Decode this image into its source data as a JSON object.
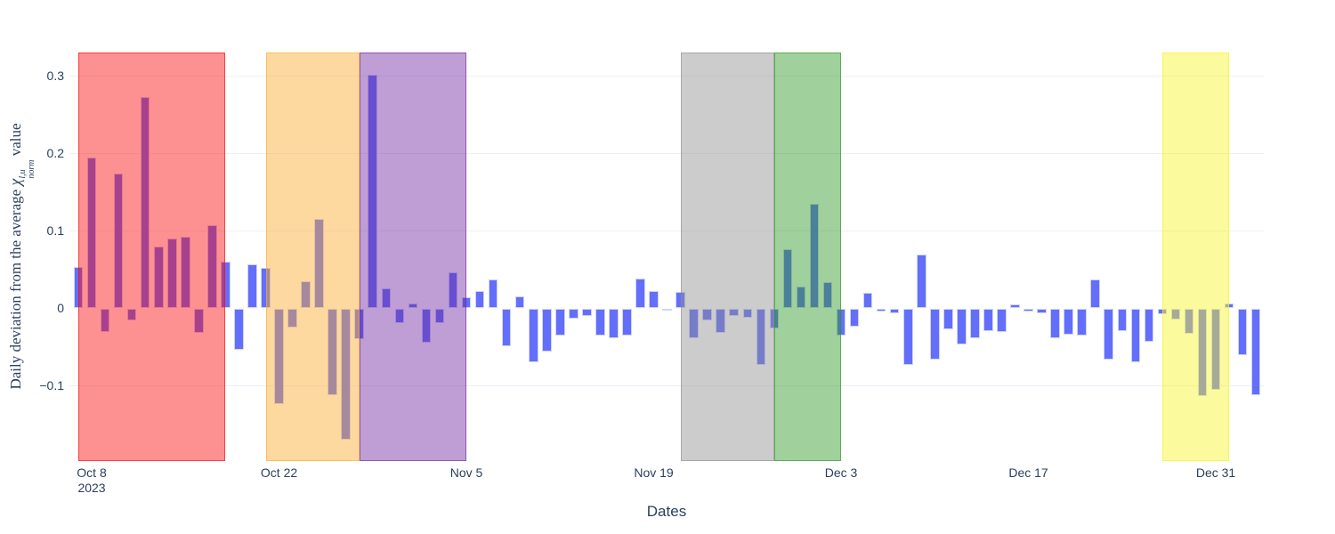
{
  "figure": {
    "background": "#ffffff",
    "text_color": "#2a3f5f",
    "grid_color": "#ebf0f8",
    "bar_color": "#636EFA",
    "bar_border_color": "rgba(225,230,250,0.85)"
  },
  "xaxis_title": "Dates",
  "ytitle_parts": {
    "prefix": "Daily deviation from the average ",
    "chi": "χ",
    "sup": "l,u",
    "sub": "norm",
    "suffix": " value"
  },
  "chart_data": {
    "type": "bar",
    "title": "",
    "xlabel": "Dates",
    "ylabel": "Daily deviation from the average χ_norm^{l,u} value",
    "ylim": [
      -0.197,
      0.331
    ],
    "grid": true,
    "legend": "none",
    "bar_color": "#636EFA",
    "x": [
      "2023-10-07",
      "2023-10-08",
      "2023-10-09",
      "2023-10-10",
      "2023-10-11",
      "2023-10-12",
      "2023-10-13",
      "2023-10-14",
      "2023-10-15",
      "2023-10-16",
      "2023-10-17",
      "2023-10-18",
      "2023-10-19",
      "2023-10-20",
      "2023-10-21",
      "2023-10-22",
      "2023-10-23",
      "2023-10-24",
      "2023-10-25",
      "2023-10-26",
      "2023-10-27",
      "2023-10-28",
      "2023-10-29",
      "2023-10-30",
      "2023-10-31",
      "2023-11-01",
      "2023-11-02",
      "2023-11-03",
      "2023-11-04",
      "2023-11-05",
      "2023-11-06",
      "2023-11-07",
      "2023-11-08",
      "2023-11-09",
      "2023-11-10",
      "2023-11-11",
      "2023-11-12",
      "2023-11-13",
      "2023-11-14",
      "2023-11-15",
      "2023-11-16",
      "2023-11-17",
      "2023-11-18",
      "2023-11-19",
      "2023-11-20",
      "2023-11-21",
      "2023-11-22",
      "2023-11-23",
      "2023-11-24",
      "2023-11-25",
      "2023-11-26",
      "2023-11-27",
      "2023-11-28",
      "2023-11-29",
      "2023-11-30",
      "2023-12-01",
      "2023-12-02",
      "2023-12-03",
      "2023-12-04",
      "2023-12-05",
      "2023-12-06",
      "2023-12-07",
      "2023-12-08",
      "2023-12-09",
      "2023-12-10",
      "2023-12-11",
      "2023-12-12",
      "2023-12-13",
      "2023-12-14",
      "2023-12-15",
      "2023-12-16",
      "2023-12-17",
      "2023-12-18",
      "2023-12-19",
      "2023-12-20",
      "2023-12-21",
      "2023-12-22",
      "2023-12-23",
      "2023-12-24",
      "2023-12-25",
      "2023-12-26",
      "2023-12-27",
      "2023-12-28",
      "2023-12-29",
      "2023-12-30",
      "2023-12-31",
      "2024-01-01",
      "2024-01-02",
      "2024-01-03"
    ],
    "values": [
      0.053,
      0.195,
      -0.031,
      0.174,
      -0.016,
      0.273,
      0.08,
      0.09,
      0.093,
      -0.032,
      0.108,
      0.06,
      -0.053,
      0.057,
      0.052,
      -0.123,
      -0.025,
      0.035,
      0.115,
      -0.112,
      -0.17,
      -0.04,
      0.302,
      0.026,
      -0.019,
      0.006,
      -0.044,
      -0.019,
      0.046,
      0.014,
      0.022,
      0.037,
      -0.049,
      0.015,
      -0.069,
      -0.056,
      -0.035,
      -0.013,
      -0.01,
      -0.035,
      -0.039,
      -0.035,
      0.039,
      0.022,
      -0.002,
      0.021,
      -0.039,
      -0.016,
      -0.032,
      -0.01,
      -0.012,
      -0.073,
      -0.026,
      0.076,
      0.028,
      0.135,
      0.034,
      -0.035,
      -0.023,
      0.02,
      -0.004,
      -0.006,
      -0.073,
      0.069,
      -0.066,
      -0.027,
      -0.046,
      -0.038,
      -0.029,
      -0.03,
      0.005,
      -0.004,
      -0.006,
      -0.039,
      -0.034,
      -0.035,
      0.037,
      -0.066,
      -0.029,
      -0.069,
      -0.043,
      -0.008,
      -0.014,
      -0.033,
      -0.113,
      -0.105,
      0.006,
      -0.06,
      -0.112
    ],
    "yticks": [
      {
        "label": "0.3",
        "value": 0.3
      },
      {
        "label": "0.2",
        "value": 0.2
      },
      {
        "label": "0.1",
        "value": 0.1
      },
      {
        "label": "0",
        "value": 0
      },
      {
        "label": "−0.1",
        "value": -0.1
      }
    ],
    "xticks": [
      {
        "date": "2023-10-08",
        "label": "Oct 8",
        "sublabel": "2023"
      },
      {
        "date": "2023-10-22",
        "label": "Oct 22"
      },
      {
        "date": "2023-11-05",
        "label": "Nov 5"
      },
      {
        "date": "2023-11-19",
        "label": "Nov 19"
      },
      {
        "date": "2023-12-03",
        "label": "Dec 3"
      },
      {
        "date": "2023-12-17",
        "label": "Dec 17"
      },
      {
        "date": "2023-12-31",
        "label": "Dec 31"
      }
    ],
    "regions": [
      {
        "name": "red-highlight",
        "from": "2023-10-07",
        "to": "2023-10-18",
        "fill": "rgba(250,10,10,0.45)",
        "border": "rgba(250,10,10,0.6)"
      },
      {
        "name": "orange-highlight",
        "from": "2023-10-21",
        "to": "2023-10-28",
        "fill": "rgba(250,171,44,0.45)",
        "border": "rgba(250,171,44,0.6)"
      },
      {
        "name": "purple-highlight",
        "from": "2023-10-28",
        "to": "2023-11-05",
        "fill": "rgba(110,40,160,0.45)",
        "border": "rgba(110,40,160,0.6)"
      },
      {
        "name": "gray-highlight",
        "from": "2023-11-21",
        "to": "2023-11-28",
        "fill": "rgba(142,142,142,0.45)",
        "border": "rgba(142,142,142,0.6)"
      },
      {
        "name": "green-highlight",
        "from": "2023-11-28",
        "to": "2023-12-03",
        "fill": "rgba(45,150,35,0.45)",
        "border": "rgba(45,150,35,0.6)"
      },
      {
        "name": "yellow-highlight",
        "from": "2023-12-27",
        "to": "2024-01-01",
        "fill": "rgba(246,244,35,0.45)",
        "border": "rgba(246,244,35,0.6)"
      }
    ]
  }
}
